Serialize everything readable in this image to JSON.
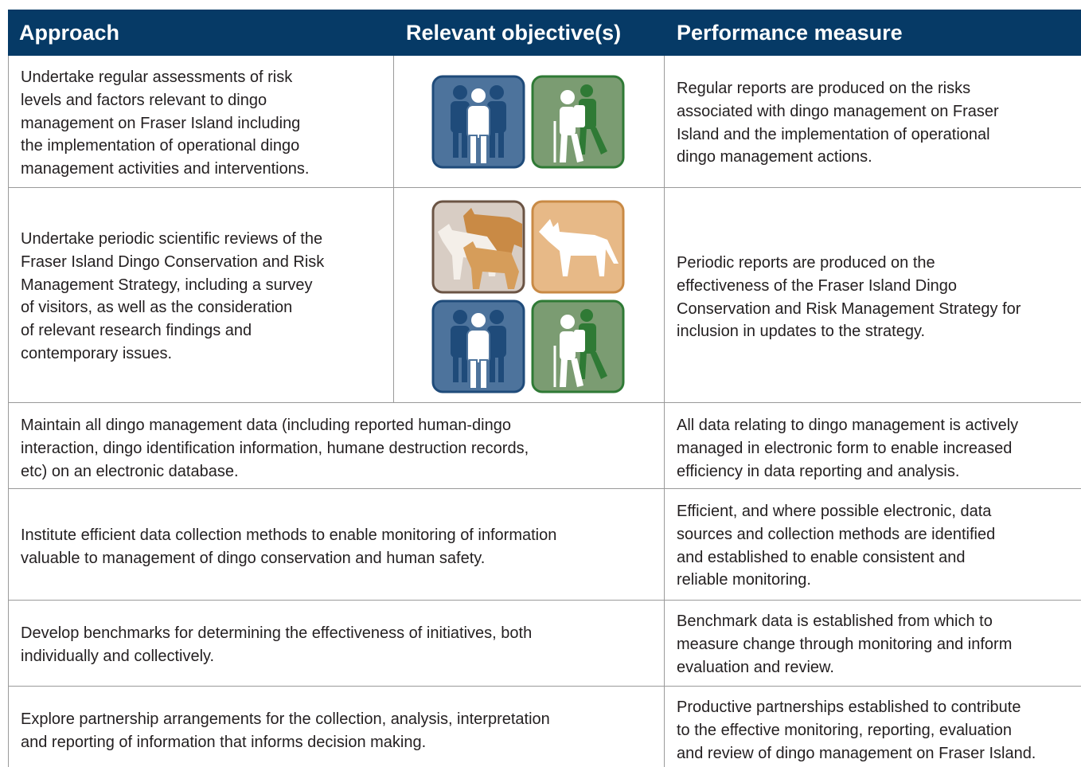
{
  "table": {
    "header": [
      "Approach",
      "Relevant objective(s)",
      "Performance measure"
    ],
    "rows": [
      {
        "approach": [
          "Undertake regular assessments of risk",
          "levels and factors relevant to dingo",
          "management on Fraser Island including",
          "the implementation of operational dingo",
          "management activities and interventions."
        ],
        "measure": [
          "Regular reports are produced on the risks",
          "associated with dingo management on Fraser",
          "Island and the implementation of operational",
          "dingo management actions."
        ]
      },
      {
        "approach": [
          "Undertake periodic scientific reviews of the",
          "Fraser Island Dingo Conservation and Risk",
          "Management Strategy, including a survey",
          "of visitors, as well as the consideration",
          "of relevant research findings and",
          "contemporary issues."
        ],
        "measure": [
          "Periodic reports are produced on the",
          "effectiveness of the Fraser Island Dingo",
          "Conservation and Risk Management Strategy for",
          "inclusion in updates to the strategy."
        ]
      },
      {
        "approach": [
          "Maintain all dingo management data (including reported human-dingo",
          "interaction, dingo identification information, humane destruction records,",
          "etc) on an electronic database."
        ],
        "measure": [
          "All data relating to dingo management is actively",
          "managed in electronic form to enable increased",
          "efficiency in data reporting and analysis."
        ]
      },
      {
        "approach": [
          "Institute efficient data collection methods to enable monitoring of information",
          "valuable to management of dingo conservation and human safety."
        ],
        "measure": [
          "Efficient, and where possible electronic, data",
          "sources and collection methods are identified",
          "and established to enable consistent and",
          "reliable monitoring."
        ]
      },
      {
        "approach": [
          "Develop benchmarks for determining the effectiveness of initiatives, both",
          "individually and collectively."
        ],
        "measure": [
          "Benchmark data is established from which to",
          "measure change through monitoring and inform",
          "evaluation and review."
        ]
      },
      {
        "approach": [
          "Explore partnership arrangements for the collection, analysis, interpretation",
          "and reporting of information that informs decision making."
        ],
        "measure": [
          "Productive partnerships established to contribute",
          "to the effective monitoring, reporting, evaluation",
          "and review of dingo management on Fraser Island."
        ]
      }
    ]
  }
}
